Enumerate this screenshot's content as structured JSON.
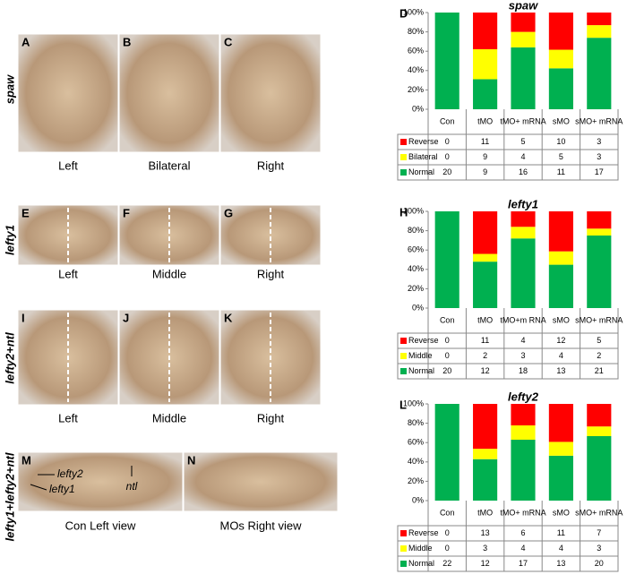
{
  "panels": [
    {
      "label": "spaw",
      "images": [
        {
          "letter": "A",
          "caption": "Left"
        },
        {
          "letter": "B",
          "caption": "Bilateral"
        },
        {
          "letter": "C",
          "caption": "Right"
        }
      ]
    },
    {
      "label": "lefty1",
      "images": [
        {
          "letter": "E",
          "caption": "Left"
        },
        {
          "letter": "F",
          "caption": "Middle"
        },
        {
          "letter": "G",
          "caption": "Right"
        }
      ]
    },
    {
      "label": "lefty2+ntl",
      "images": [
        {
          "letter": "I",
          "caption": "Left"
        },
        {
          "letter": "J",
          "caption": "Middle"
        },
        {
          "letter": "K",
          "caption": "Right"
        }
      ]
    },
    {
      "label": "lefty1+lefty2+ntl",
      "images": [
        {
          "letter": "M",
          "caption": "Con Left view"
        },
        {
          "letter": "N",
          "caption": "MOs Right view"
        }
      ],
      "annotations": [
        "lefty2",
        "lefty1",
        "ntl"
      ]
    }
  ],
  "chart_data": [
    {
      "type": "stacked_percent_bar",
      "letter": "D",
      "title": "spaw",
      "categories": [
        "Con",
        "tMO",
        "tMO+ mRNA",
        "sMO",
        "sMO+ mRNA"
      ],
      "series": [
        {
          "name": "Reverse",
          "color": "#ff0000",
          "values": [
            0,
            11,
            5,
            10,
            3
          ]
        },
        {
          "name": "Bilateral",
          "color": "#ffff00",
          "values": [
            0,
            9,
            4,
            5,
            3
          ]
        },
        {
          "name": "Normal",
          "color": "#00b050",
          "values": [
            20,
            9,
            16,
            11,
            17
          ]
        }
      ],
      "ylim": [
        0,
        100
      ],
      "yticks": [
        {
          "value": 0,
          "label": "0%"
        },
        {
          "value": 20,
          "label": "20%"
        },
        {
          "value": 40,
          "label": "40%"
        },
        {
          "value": 60,
          "label": "60%"
        },
        {
          "value": 80,
          "label": "80%"
        },
        {
          "value": 100,
          "label": "100%"
        }
      ]
    },
    {
      "type": "stacked_percent_bar",
      "letter": "H",
      "title": "lefty1",
      "categories": [
        "Con",
        "tMO",
        "tMO+m RNA",
        "sMO",
        "sMO+ mRNA"
      ],
      "series": [
        {
          "name": "Reverse",
          "color": "#ff0000",
          "values": [
            0,
            11,
            4,
            12,
            5
          ]
        },
        {
          "name": "Middle",
          "color": "#ffff00",
          "values": [
            0,
            2,
            3,
            4,
            2
          ]
        },
        {
          "name": "Normal",
          "color": "#00b050",
          "values": [
            20,
            12,
            18,
            13,
            21
          ]
        }
      ],
      "ylim": [
        0,
        100
      ],
      "yticks": [
        {
          "value": 0,
          "label": "0%"
        },
        {
          "value": 20,
          "label": "20%"
        },
        {
          "value": 40,
          "label": "40%"
        },
        {
          "value": 60,
          "label": "60%"
        },
        {
          "value": 80,
          "label": "80%"
        },
        {
          "value": 100,
          "label": "100%"
        }
      ]
    },
    {
      "type": "stacked_percent_bar",
      "letter": "L",
      "title": "lefty2",
      "categories": [
        "Con",
        "tMO",
        "tMO+ mRNA",
        "sMO",
        "sMO+ mRNA"
      ],
      "series": [
        {
          "name": "Reverse",
          "color": "#ff0000",
          "values": [
            0,
            13,
            6,
            11,
            7
          ]
        },
        {
          "name": "Middle",
          "color": "#ffff00",
          "values": [
            0,
            3,
            4,
            4,
            3
          ]
        },
        {
          "name": "Normal",
          "color": "#00b050",
          "values": [
            22,
            12,
            17,
            13,
            20
          ]
        }
      ],
      "ylim": [
        0,
        100
      ],
      "yticks": [
        {
          "value": 0,
          "label": "0%"
        },
        {
          "value": 20,
          "label": "20%"
        },
        {
          "value": 40,
          "label": "40%"
        },
        {
          "value": 60,
          "label": "60%"
        },
        {
          "value": 80,
          "label": "80%"
        },
        {
          "value": 100,
          "label": "100%"
        }
      ]
    }
  ]
}
